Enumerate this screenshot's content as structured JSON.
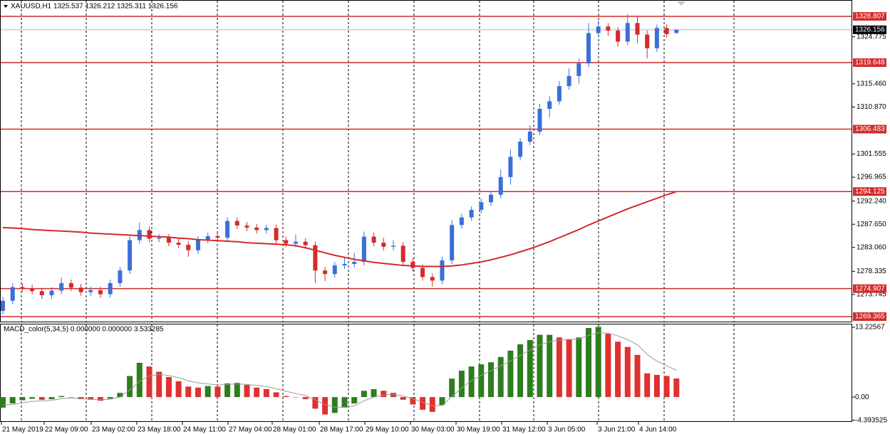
{
  "chart_data": [
    {
      "type": "candlestick",
      "title": "XAUUSD,H1 1325.537 1326.212 1325.311 1326.156",
      "open": [
        1270.5,
        1272.5,
        1275.2,
        1275.0,
        1274.4,
        1273.6,
        1274.5,
        1276.0,
        1275.1,
        1274.2,
        1274.6,
        1273.8,
        1276.0,
        1278.5,
        1284.5,
        1286.5,
        1284.8,
        1285.0,
        1284.0,
        1283.6,
        1282.5,
        1284.6,
        1285.3,
        1285.0,
        1288.3,
        1287.4,
        1287.0,
        1286.5,
        1286.9,
        1284.5,
        1283.8,
        1284.2,
        1283.5,
        1278.5,
        1277.8,
        1279.5,
        1279.8,
        1280.2,
        1285.2,
        1284.0,
        1283.2,
        1283.4,
        1280.2,
        1279.0,
        1277.2,
        1276.5,
        1280.5,
        1287.5,
        1289.0,
        1290.5,
        1292.0,
        1293.5,
        1297.0,
        1301.0,
        1304.0,
        1306.0,
        1310.5,
        1312.0,
        1315.0,
        1317.0,
        1319.5,
        1325.5,
        1326.8,
        1326.0,
        1323.8,
        1327.5,
        1325.2,
        1322.5,
        1326.5,
        1325.537
      ],
      "high": [
        1273.2,
        1275.9,
        1275.9,
        1275.7,
        1275.1,
        1275.2,
        1277.1,
        1276.7,
        1275.8,
        1275.3,
        1275.3,
        1276.7,
        1279.2,
        1285.2,
        1288.0,
        1287.2,
        1285.7,
        1285.7,
        1284.7,
        1284.3,
        1285.3,
        1286.0,
        1286.0,
        1289.0,
        1289.0,
        1288.1,
        1287.7,
        1287.6,
        1287.6,
        1285.2,
        1285.6,
        1284.9,
        1284.2,
        1279.2,
        1280.2,
        1281.0,
        1282.0,
        1286.2,
        1286.0,
        1285.0,
        1284.5,
        1284.1,
        1280.9,
        1279.7,
        1277.9,
        1281.2,
        1288.5,
        1289.7,
        1291.2,
        1292.7,
        1294.2,
        1298.5,
        1302.5,
        1304.7,
        1307.2,
        1311.5,
        1313.0,
        1316.0,
        1318.5,
        1320.5,
        1327.5,
        1328.0,
        1327.5,
        1326.7,
        1329.2,
        1329.0,
        1326.0,
        1327.2,
        1327.2,
        1326.212
      ],
      "low": [
        1269.8,
        1271.8,
        1274.3,
        1273.7,
        1272.9,
        1272.9,
        1273.8,
        1274.4,
        1273.5,
        1273.5,
        1273.1,
        1273.1,
        1275.3,
        1277.8,
        1283.8,
        1284.1,
        1284.1,
        1283.3,
        1282.9,
        1281.2,
        1281.8,
        1283.9,
        1284.3,
        1284.3,
        1286.7,
        1286.3,
        1285.8,
        1285.8,
        1283.8,
        1283.1,
        1283.1,
        1282.8,
        1276.0,
        1276.4,
        1277.1,
        1278.8,
        1279.1,
        1279.5,
        1283.3,
        1282.5,
        1282.5,
        1279.5,
        1278.3,
        1276.5,
        1275.3,
        1275.8,
        1279.8,
        1286.8,
        1288.3,
        1289.8,
        1291.3,
        1292.8,
        1295.5,
        1300.3,
        1303.3,
        1305.3,
        1308.8,
        1311.3,
        1314.3,
        1315.5,
        1318.8,
        1324.8,
        1325.0,
        1322.8,
        1323.1,
        1323.5,
        1320.5,
        1321.8,
        1324.6,
        1325.311
      ],
      "close": [
        1272.5,
        1275.2,
        1275.0,
        1274.4,
        1273.6,
        1274.5,
        1276.0,
        1275.1,
        1274.2,
        1274.6,
        1273.8,
        1276.0,
        1278.5,
        1284.5,
        1286.5,
        1284.8,
        1285.0,
        1284.0,
        1283.6,
        1282.5,
        1284.6,
        1285.3,
        1285.0,
        1288.3,
        1287.4,
        1287.0,
        1286.5,
        1286.9,
        1284.5,
        1283.8,
        1284.2,
        1283.5,
        1278.5,
        1277.8,
        1279.5,
        1279.8,
        1280.2,
        1285.2,
        1284.0,
        1283.2,
        1283.4,
        1280.2,
        1279.0,
        1277.2,
        1276.5,
        1280.5,
        1287.5,
        1289.0,
        1290.5,
        1292.0,
        1293.5,
        1297.0,
        1301.0,
        1304.0,
        1306.0,
        1310.5,
        1312.0,
        1315.0,
        1317.0,
        1319.5,
        1325.5,
        1326.8,
        1326.0,
        1323.8,
        1327.5,
        1325.2,
        1322.5,
        1326.5,
        1325.3,
        1326.156
      ],
      "up_color": "#3a6fd8",
      "down_color": "#d42a2a",
      "ma": {
        "color": "#d42a2a",
        "values": [
          1287.0,
          1286.9,
          1286.8,
          1286.6,
          1286.5,
          1286.4,
          1286.3,
          1286.2,
          1286.1,
          1285.9,
          1285.8,
          1285.7,
          1285.6,
          1285.5,
          1285.4,
          1285.3,
          1285.2,
          1285.1,
          1284.9,
          1284.8,
          1284.6,
          1284.5,
          1284.4,
          1284.3,
          1284.2,
          1284.0,
          1283.9,
          1283.8,
          1283.7,
          1283.6,
          1283.4,
          1283.0,
          1282.5,
          1282.0,
          1281.5,
          1281.1,
          1280.7,
          1280.4,
          1280.1,
          1279.9,
          1279.7,
          1279.5,
          1279.4,
          1279.3,
          1279.3,
          1279.3,
          1279.4,
          1279.6,
          1279.9,
          1280.2,
          1280.6,
          1281.1,
          1281.6,
          1282.2,
          1282.8,
          1283.5,
          1284.2,
          1285.0,
          1285.8,
          1286.6,
          1287.5,
          1288.3,
          1289.1,
          1289.9,
          1290.7,
          1291.4,
          1292.1,
          1292.8,
          1293.5,
          1294.1
        ]
      },
      "levels": [
        1328.807,
        1319.648,
        1306.483,
        1294.125,
        1274.907,
        1269.365
      ],
      "level_color": "#d42a2a",
      "current": 1326.156,
      "ylim": [
        1268.38,
        1332.05
      ],
      "yticks": [
        1324.775,
        {
          "value": 1315.46,
          "label": "1315.460"
        },
        {
          "value": 1310.87,
          "label": "1310.870"
        },
        1301.555,
        1296.965,
        {
          "value": 1292.24,
          "label": "1292.240"
        },
        {
          "value": 1287.65,
          "label": "1287.650"
        },
        {
          "value": 1283.06,
          "label": "1283.060"
        },
        1278.335,
        1273.745
      ],
      "x_labels": [
        "21 May 2019",
        "22 May 09:00",
        "23 May 02:00",
        "23 May 18:00",
        "24 May 11:00",
        "27 May 04:00",
        "28 May 01:00",
        "28 May 17:00",
        "29 May 10:00",
        "30 May 03:00",
        "30 May 19:00",
        "31 May 12:00",
        "3 Jun 05:00",
        "3 Jun 21:00",
        "4 Jun 14:00"
      ],
      "grid": true
    },
    {
      "type": "histogram",
      "title": "MACD_color(5,34,5) 0.000000 0.000000 3.533285",
      "values": [
        -2.0,
        -1.2,
        -0.6,
        -0.3,
        -0.5,
        -0.4,
        0.2,
        0.0,
        -0.4,
        -0.5,
        -0.7,
        -0.3,
        0.8,
        4.0,
        6.5,
        5.8,
        4.8,
        3.8,
        3.0,
        2.0,
        1.8,
        2.1,
        2.0,
        2.6,
        2.7,
        2.3,
        1.8,
        1.5,
        0.9,
        0.2,
        0.0,
        -0.4,
        -2.2,
        -3.3,
        -3.0,
        -2.0,
        -1.2,
        1.2,
        1.5,
        1.2,
        0.8,
        -0.5,
        -1.4,
        -2.4,
        -2.8,
        -1.5,
        3.5,
        5.0,
        5.8,
        6.2,
        6.6,
        7.6,
        8.8,
        10.0,
        10.8,
        11.8,
        11.8,
        11.3,
        11.0,
        11.3,
        13.1,
        13.3,
        12.0,
        10.5,
        9.5,
        8.0,
        4.5,
        4.2,
        4.0,
        3.53
      ],
      "signal": [
        -1.5,
        -1.4,
        -1.1,
        -0.8,
        -0.7,
        -0.6,
        -0.3,
        -0.2,
        -0.3,
        -0.4,
        -0.5,
        -0.4,
        0.0,
        1.3,
        3.0,
        4.0,
        4.3,
        4.1,
        3.7,
        3.1,
        2.7,
        2.5,
        2.3,
        2.4,
        2.5,
        2.4,
        2.2,
        2.0,
        1.6,
        1.1,
        0.7,
        0.3,
        -0.5,
        -1.4,
        -1.9,
        -1.9,
        -1.7,
        -0.7,
        0.0,
        0.4,
        0.5,
        0.2,
        -0.3,
        -1.0,
        -1.6,
        -1.6,
        0.1,
        1.7,
        3.1,
        4.1,
        5.0,
        5.9,
        6.9,
        7.9,
        8.9,
        9.9,
        10.5,
        10.8,
        10.9,
        11.0,
        11.7,
        12.2,
        12.1,
        11.6,
        10.9,
        9.9,
        8.1,
        6.8,
        5.9,
        5.1
      ],
      "up_color": "#2e7d1e",
      "down_color": "#e03030",
      "signal_color": "#999999",
      "ylim": [
        -4.7,
        13.9
      ],
      "yticks": [
        13.22567,
        {
          "value": 0,
          "label": "0.00"
        },
        -4.393525
      ]
    }
  ]
}
